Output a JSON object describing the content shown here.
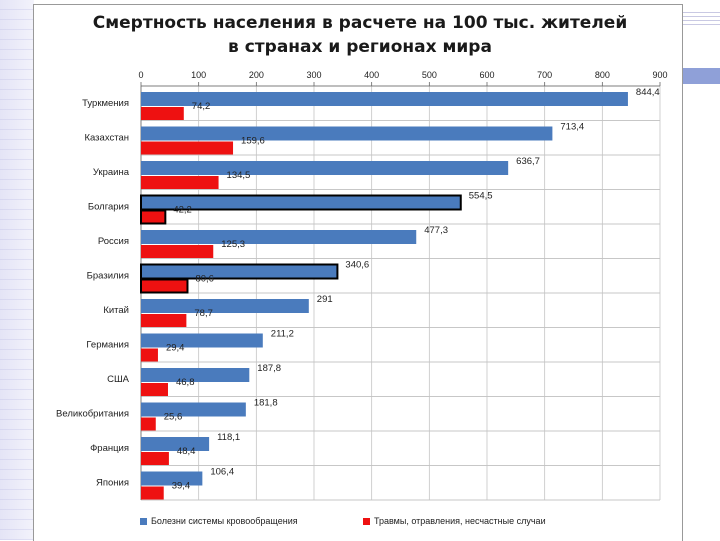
{
  "chart_data": {
    "type": "bar",
    "orientation": "horizontal",
    "title": "Смертность населения в расчете на 100 тыс. жителей в странах и регионах мира",
    "title_lines": [
      "Смертность населения в расчете на 100 тыс. жителей",
      "в странах и регионах мира"
    ],
    "categories": [
      "Туркмения",
      "Казахстан",
      "Украина",
      "Болгария",
      "Россия",
      "Бразилия",
      "Китай",
      "Германия",
      "США",
      "Великобритания",
      "Франция",
      "Япония"
    ],
    "xlim": [
      0,
      900
    ],
    "xticks": [
      "0",
      "100",
      "200",
      "300",
      "400",
      "500",
      "600",
      "700",
      "800",
      "900"
    ],
    "grid": true,
    "legend_position": "bottom",
    "highlighted_categories": [
      "Болгария",
      "Бразилия"
    ],
    "series": [
      {
        "name": "Болезни системы кровообращения",
        "color": "#4a7bbd",
        "values": [
          844.4,
          713.4,
          636.7,
          554.5,
          477.3,
          340.6,
          291,
          211.2,
          187.8,
          181.8,
          118.1,
          106.4
        ],
        "labels": [
          "844,4",
          "713,4",
          "636,7",
          "554,5",
          "477,3",
          "340,6",
          "291",
          "211,2",
          "187,8",
          "181,8",
          "118,1",
          "106,4"
        ]
      },
      {
        "name": "Травмы, отравления, несчастные случаи",
        "color": "#ee1111",
        "values": [
          74.2,
          159.6,
          134.5,
          42.2,
          125.3,
          80.6,
          78.7,
          29.4,
          46.8,
          25.6,
          48.4,
          39.4
        ],
        "labels": [
          "74,2",
          "159,6",
          "134,5",
          "42,2",
          "125,3",
          "80,6",
          "78,7",
          "29,4",
          "46,8",
          "25,6",
          "48,4",
          "39,4"
        ]
      }
    ]
  }
}
